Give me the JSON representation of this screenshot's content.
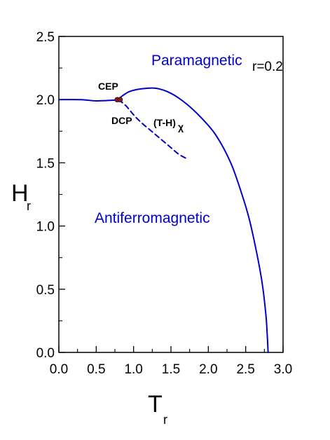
{
  "chart_data": {
    "type": "line",
    "xlabel": "T",
    "xlabel_sub": "r",
    "ylabel": "H",
    "ylabel_sub": "r",
    "xlim": [
      0.0,
      3.0
    ],
    "ylim": [
      0.0,
      2.5
    ],
    "xticks": [
      "0.0",
      "0.5",
      "1.0",
      "1.5",
      "2.0",
      "2.5",
      "3.0"
    ],
    "yticks": [
      "0.0",
      "0.5",
      "1.0",
      "1.5",
      "2.0",
      "2.5"
    ],
    "grid": false,
    "series": [
      {
        "style": "solid",
        "color": "#0000cc",
        "points": [
          [
            0.0,
            2.0
          ],
          [
            0.3,
            2.0
          ],
          [
            0.5,
            1.99
          ],
          [
            0.7,
            1.995
          ],
          [
            0.78,
            2.0
          ],
          [
            0.85,
            2.03
          ],
          [
            0.95,
            2.065
          ],
          [
            1.1,
            2.085
          ],
          [
            1.3,
            2.09
          ],
          [
            1.5,
            2.05
          ],
          [
            1.7,
            1.97
          ],
          [
            1.9,
            1.86
          ],
          [
            2.1,
            1.72
          ],
          [
            2.3,
            1.5
          ],
          [
            2.45,
            1.25
          ],
          [
            2.55,
            1.05
          ],
          [
            2.65,
            0.78
          ],
          [
            2.72,
            0.55
          ],
          [
            2.77,
            0.3
          ],
          [
            2.79,
            0.12
          ],
          [
            2.8,
            0.0
          ]
        ]
      },
      {
        "style": "dashed",
        "color": "#0000cc",
        "points": [
          [
            0.8,
            2.0
          ],
          [
            0.9,
            1.95
          ],
          [
            1.0,
            1.88
          ],
          [
            1.1,
            1.82
          ],
          [
            1.2,
            1.77
          ],
          [
            1.3,
            1.72
          ],
          [
            1.4,
            1.67
          ],
          [
            1.5,
            1.62
          ],
          [
            1.6,
            1.57
          ],
          [
            1.72,
            1.53
          ]
        ]
      }
    ],
    "points": [
      {
        "name": "CEP",
        "x": 0.78,
        "y": 2.0,
        "color": "#8b1a1a"
      },
      {
        "name": "DCP",
        "x": 0.82,
        "y": 2.0,
        "color": "#8b1a1a"
      }
    ],
    "annotations": {
      "paramagnetic": "Paramagnetic",
      "antiferromagnetic": "Antiferromagnetic",
      "param": "r=0.2",
      "cep": "CEP",
      "dcp": "DCP",
      "th_main": "(T-H)",
      "th_sub": "χ"
    },
    "region_color": "#0000cc"
  }
}
